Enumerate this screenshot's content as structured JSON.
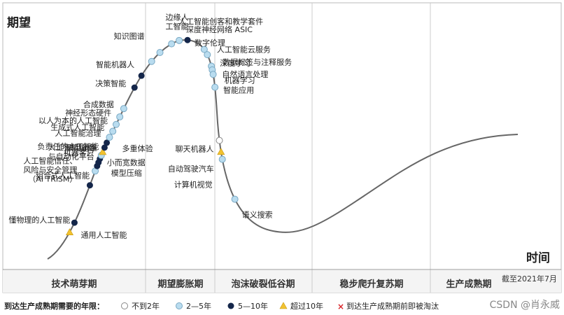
{
  "chart_data": {
    "type": "scatter",
    "title": "",
    "xlabel": "时间",
    "ylabel": "期望",
    "as_of_note": "截至2021年7月",
    "phases": [
      "技术萌芽期",
      "期望膨胀期",
      "泡沫破裂低谷期",
      "稳步爬升复苏期",
      "生产成熟期"
    ],
    "legend": {
      "title": "到达生产成熟期需要的年限：",
      "items": [
        {
          "key": "lt2",
          "label": "不到2年",
          "color": "#ffffff"
        },
        {
          "key": "2to5",
          "label": "2—5年",
          "color": "#b9dcef"
        },
        {
          "key": "5to10",
          "label": "5—10年",
          "color": "#14264a"
        },
        {
          "key": "gt10",
          "label": "超过10年",
          "color": "#f2c230"
        },
        {
          "key": "obsolete",
          "label": "到达生产成熟期前即被淘汰",
          "color": "#d9262b"
        }
      ]
    },
    "curve_color": "#666666",
    "technologies": [
      {
        "name": "通用人工智能",
        "t": 0.046,
        "cat": "gt10"
      },
      {
        "name": "懂物理的人工智能",
        "t": 0.06,
        "cat": "5to10"
      },
      {
        "name": "人工智能信任、\n风险与安全管理\n（AI TRiSM）",
        "t": 0.113,
        "cat": "5to10"
      },
      {
        "name": "组合式人工智能",
        "t": 0.133,
        "cat": "2to5"
      },
      {
        "name": "模型压缩",
        "t": 0.14,
        "cat": "5to10"
      },
      {
        "name": "小而宽数据",
        "t": 0.145,
        "cat": "5to10"
      },
      {
        "name": "人工智能编排\n与自动化平台",
        "t": 0.15,
        "cat": "5to10"
      },
      {
        "name": "机器客户",
        "t": 0.155,
        "cat": "2to5"
      },
      {
        "name": "模型运维",
        "t": 0.16,
        "cat": "gt10"
      },
      {
        "name": "负责任的人工智能",
        "t": 0.166,
        "cat": "5to10"
      },
      {
        "name": "多重体验",
        "t": 0.173,
        "cat": "5to10"
      },
      {
        "name": "人工智能治理",
        "t": 0.181,
        "cat": "2to5"
      },
      {
        "name": "生成式人工智能",
        "t": 0.19,
        "cat": "2to5"
      },
      {
        "name": "以人为本的人工智能",
        "t": 0.2,
        "cat": "2to5"
      },
      {
        "name": "神经形态硬件",
        "t": 0.211,
        "cat": "2to5"
      },
      {
        "name": "合成数据",
        "t": 0.223,
        "cat": "2to5"
      },
      {
        "name": "决策智能",
        "t": 0.254,
        "cat": "5to10"
      },
      {
        "name": "智能机器人",
        "t": 0.272,
        "cat": "5to10"
      },
      {
        "name": "知识图谱",
        "t": 0.295,
        "cat": "2to5"
      },
      {
        "name": "边缘人\n工智能",
        "t": 0.311,
        "cat": "2to5"
      },
      {
        "name": "人工智能创客和教学套件",
        "t": 0.33,
        "cat": "2to5"
      },
      {
        "name": "深度神经网络 ASIC",
        "t": 0.341,
        "cat": "2to5"
      },
      {
        "name": "数字伦理",
        "t": 0.352,
        "cat": "5to10"
      },
      {
        "name": "人工智能云服务",
        "t": 0.378,
        "cat": "2to5"
      },
      {
        "name": "深度学习",
        "t": 0.386,
        "cat": "2to5"
      },
      {
        "name": "数据标签与注释服务",
        "t": 0.402,
        "cat": "2to5"
      },
      {
        "name": "自然语言处理",
        "t": 0.407,
        "cat": "2to5"
      },
      {
        "name": "机器学习",
        "t": 0.413,
        "cat": "2to5"
      },
      {
        "name": "智能应用",
        "t": 0.43,
        "cat": "2to5"
      },
      {
        "name": "聊天机器人",
        "t": 0.5,
        "cat": "lt2"
      },
      {
        "name": "自动驾驶汽车",
        "t": 0.515,
        "cat": "gt10"
      },
      {
        "name": "计算机视觉",
        "t": 0.525,
        "cat": "2to5"
      },
      {
        "name": "语义搜索",
        "t": 0.58,
        "cat": "2to5"
      }
    ]
  },
  "watermark": "CSDN @肖永威"
}
